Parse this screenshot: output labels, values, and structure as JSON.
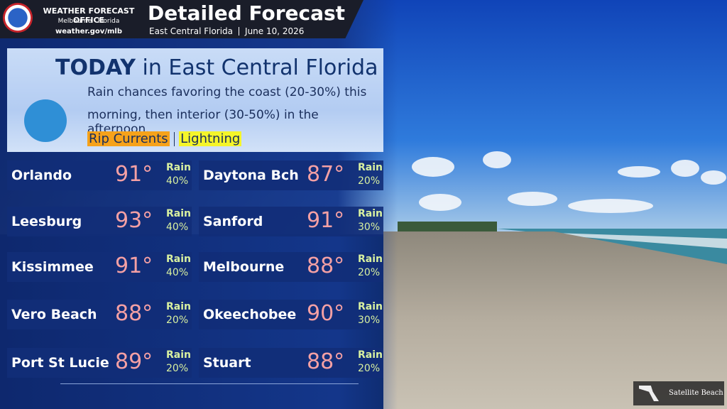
{
  "header": {
    "office": "WEATHER FORECAST OFFICE",
    "city": "Melbourne",
    "state": "Florida",
    "url": "weather.gov/mlb",
    "title": "Detailed Forecast",
    "region": "East Central Florida",
    "date": "June 10, 2026"
  },
  "today": {
    "heading": "TODAY",
    "heading_rest": "in East Central Florida",
    "lines": [
      "Rain  chances favoring the coast (20-30%) this",
      "morning, then interior (30-50%) in the afternoon."
    ],
    "hazards": [
      "Rip Currents",
      "Lightning"
    ]
  },
  "cities": [
    {
      "name": "Orlando",
      "temp": "91°",
      "rain": "Rain",
      "chance": "40%"
    },
    {
      "name": "Daytona Bch",
      "temp": "87°",
      "rain": "Rain",
      "chance": "20%"
    },
    {
      "name": "Leesburg",
      "temp": "93°",
      "rain": "Rain",
      "chance": "40%"
    },
    {
      "name": "Sanford",
      "temp": "91°",
      "rain": "Rain",
      "chance": "30%"
    },
    {
      "name": "Kissimmee",
      "temp": "91°",
      "rain": "Rain",
      "chance": "40%"
    },
    {
      "name": "Melbourne",
      "temp": "88°",
      "rain": "Rain",
      "chance": "20%"
    },
    {
      "name": "Vero Beach",
      "temp": "88°",
      "rain": "Rain",
      "chance": "20%"
    },
    {
      "name": "Okeechobee",
      "temp": "90°",
      "rain": "Rain",
      "chance": "30%"
    },
    {
      "name": "Port St Lucie",
      "temp": "89°",
      "rain": "Rain",
      "chance": "20%"
    },
    {
      "name": "Stuart",
      "temp": "88°",
      "rain": "Rain",
      "chance": "20%"
    }
  ],
  "photo": {
    "caption": "Satellite Beach"
  }
}
